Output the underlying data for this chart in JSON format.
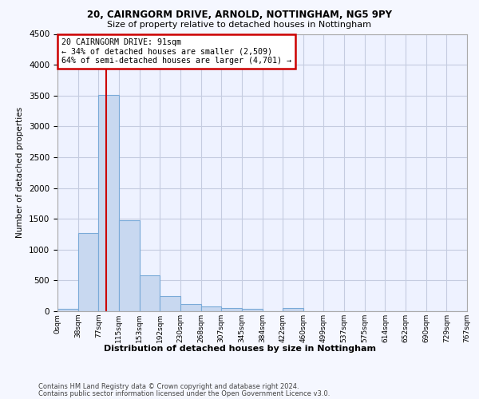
{
  "title1": "20, CAIRNGORM DRIVE, ARNOLD, NOTTINGHAM, NG5 9PY",
  "title2": "Size of property relative to detached houses in Nottingham",
  "xlabel": "Distribution of detached houses by size in Nottingham",
  "ylabel": "Number of detached properties",
  "footer1": "Contains HM Land Registry data © Crown copyright and database right 2024.",
  "footer2": "Contains public sector information licensed under the Open Government Licence v3.0.",
  "bin_labels": [
    "0sqm",
    "38sqm",
    "77sqm",
    "115sqm",
    "153sqm",
    "192sqm",
    "230sqm",
    "268sqm",
    "307sqm",
    "345sqm",
    "384sqm",
    "422sqm",
    "460sqm",
    "499sqm",
    "537sqm",
    "575sqm",
    "614sqm",
    "652sqm",
    "690sqm",
    "729sqm",
    "767sqm"
  ],
  "bar_values": [
    40,
    1270,
    3510,
    1480,
    580,
    240,
    115,
    80,
    55,
    40,
    0,
    50,
    0,
    0,
    0,
    0,
    0,
    0,
    0,
    0
  ],
  "bar_color": "#c8d8f0",
  "bar_edge_color": "#7aaad8",
  "vline_color": "#cc0000",
  "annotation_text": "20 CAIRNGORM DRIVE: 91sqm\n← 34% of detached houses are smaller (2,509)\n64% of semi-detached houses are larger (4,701) →",
  "annotation_box_color": "white",
  "annotation_box_edge_color": "#cc0000",
  "ylim": [
    0,
    4500
  ],
  "yticks": [
    0,
    500,
    1000,
    1500,
    2000,
    2500,
    3000,
    3500,
    4000,
    4500
  ],
  "background_color": "#f5f7ff",
  "plot_bg_color": "#eef2ff",
  "grid_color": "#c5cce0"
}
